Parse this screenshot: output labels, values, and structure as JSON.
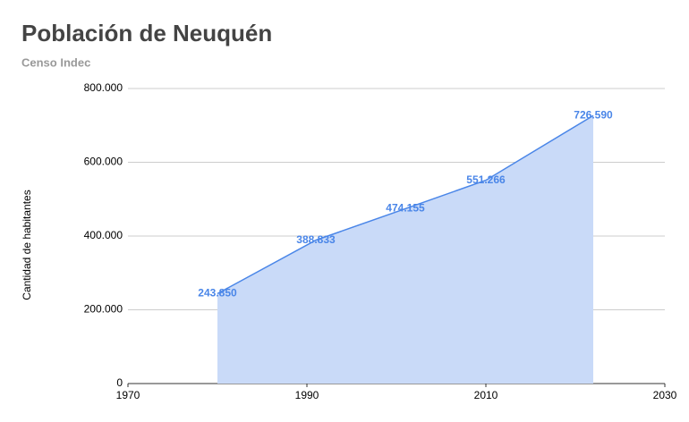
{
  "chart_data": {
    "type": "area",
    "title": "Población de Neuquén",
    "subtitle": "Censo Indec",
    "y_label": "Cantidad de habitantes",
    "x": [
      1980,
      1991,
      2001,
      2010,
      2022
    ],
    "series": [
      {
        "name": "Población",
        "color": "#4a86e8",
        "fill": "#c9daf8",
        "values": [
          243850,
          388833,
          474155,
          551266,
          726590
        ],
        "value_labels": [
          "243.850",
          "388.833",
          "474.155",
          "551.266",
          "726.590"
        ]
      }
    ],
    "xlim": [
      1970,
      2030
    ],
    "xticks": [
      1970,
      1990,
      2010,
      2030
    ],
    "ylim": [
      0,
      800000
    ],
    "yticks": [
      0,
      {
        "value": 200000,
        "label": "200.000"
      },
      {
        "value": 400000,
        "label": "400.000"
      },
      {
        "value": 600000,
        "label": "600.000"
      },
      {
        "value": 800000,
        "label": "800.000"
      }
    ],
    "grid": true
  }
}
